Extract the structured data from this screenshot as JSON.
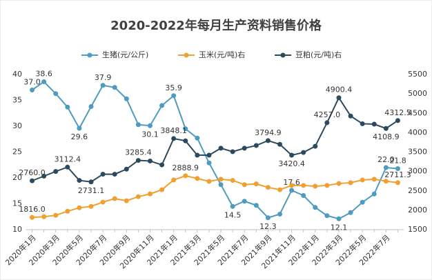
{
  "chart_data": {
    "type": "line",
    "title": "2020-2022年每月生产资料销售价格",
    "categories": [
      "2020年1月",
      null,
      "2020年3月",
      null,
      "2020年5月",
      null,
      "2020年7月",
      null,
      "2020年9月",
      null,
      "2020年11月",
      null,
      "2021年1月",
      null,
      "2021年3月",
      null,
      "2021年5月",
      null,
      "2021年7月",
      null,
      "2021年9月",
      null,
      "2021年11月",
      null,
      "2022年1月",
      null,
      "2022年3月",
      null,
      "2022年5月",
      null,
      "2022年7月",
      null
    ],
    "series": [
      {
        "name": "生猪(元/公斤)",
        "color": "#4f9bc0",
        "axis": "y",
        "values": [
          37.0,
          38.6,
          36.3,
          33.7,
          29.6,
          33.8,
          37.9,
          37.5,
          35.3,
          30.3,
          30.1,
          34.0,
          35.9,
          29.5,
          27.7,
          22.9,
          18.7,
          14.5,
          15.5,
          14.7,
          12.3,
          13.0,
          17.6,
          16.6,
          14.3,
          12.7,
          12.1,
          13.3,
          15.3,
          16.9,
          22.0,
          21.8
        ],
        "value_labels": [
          "37.0",
          "38.6",
          null,
          null,
          "29.6",
          null,
          "37.9",
          null,
          null,
          null,
          "30.1",
          null,
          "35.9",
          null,
          null,
          null,
          null,
          "14.5",
          null,
          null,
          "12.3",
          null,
          "17.6",
          null,
          null,
          null,
          "12.1",
          null,
          null,
          null,
          "22.0",
          "21.8"
        ]
      },
      {
        "name": "玉米(元/吨)右",
        "color": "#f0a030",
        "axis": "y2",
        "values": [
          1816.0,
          1833,
          1870,
          1975,
          2065,
          2100,
          2210,
          2300,
          2245,
          2350,
          2420,
          2530,
          2780,
          2888.9,
          2820,
          2745,
          2800,
          2770,
          2660,
          2680,
          2590,
          2530,
          2640,
          2640,
          2620,
          2640,
          2690,
          2710,
          2780,
          2800,
          2750,
          2711.3
        ],
        "value_labels": [
          "1816.0",
          null,
          null,
          null,
          null,
          null,
          null,
          null,
          null,
          null,
          null,
          null,
          null,
          "2888.9",
          null,
          null,
          null,
          null,
          null,
          null,
          null,
          null,
          null,
          null,
          null,
          null,
          null,
          null,
          null,
          null,
          null,
          "2711.3"
        ]
      },
      {
        "name": "豆粕(元/吨)右",
        "color": "#2b4a5e",
        "axis": "y2",
        "values": [
          2760.0,
          2880,
          3000,
          3112.4,
          2770,
          2731.1,
          2930,
          2930,
          3060,
          3285.4,
          3270,
          3170,
          3848.1,
          3790,
          3420,
          3420,
          3600,
          3510,
          3600,
          3670,
          3794.9,
          3700,
          3420.4,
          3490,
          3650,
          4257.0,
          4900.4,
          4430,
          4230,
          4220,
          4108.9,
          4312.5
        ],
        "value_labels": [
          "2760.0",
          null,
          null,
          "3112.4",
          null,
          "2731.1",
          null,
          null,
          null,
          "3285.4",
          null,
          null,
          "3848.1",
          null,
          null,
          null,
          null,
          null,
          null,
          null,
          "3794.9",
          null,
          "3420.4",
          null,
          null,
          "4257.0",
          "4900.4",
          null,
          null,
          null,
          "4108.9",
          "4312.5"
        ]
      }
    ],
    "ylim": [
      10,
      40
    ],
    "yticks": [
      10,
      15,
      20,
      25,
      30,
      35,
      40
    ],
    "y2lim": [
      1500,
      5500
    ],
    "y2ticks": [
      1500,
      2000,
      2500,
      3000,
      3500,
      4000,
      4500,
      5000,
      5500
    ],
    "grid": false,
    "legend": "top"
  }
}
